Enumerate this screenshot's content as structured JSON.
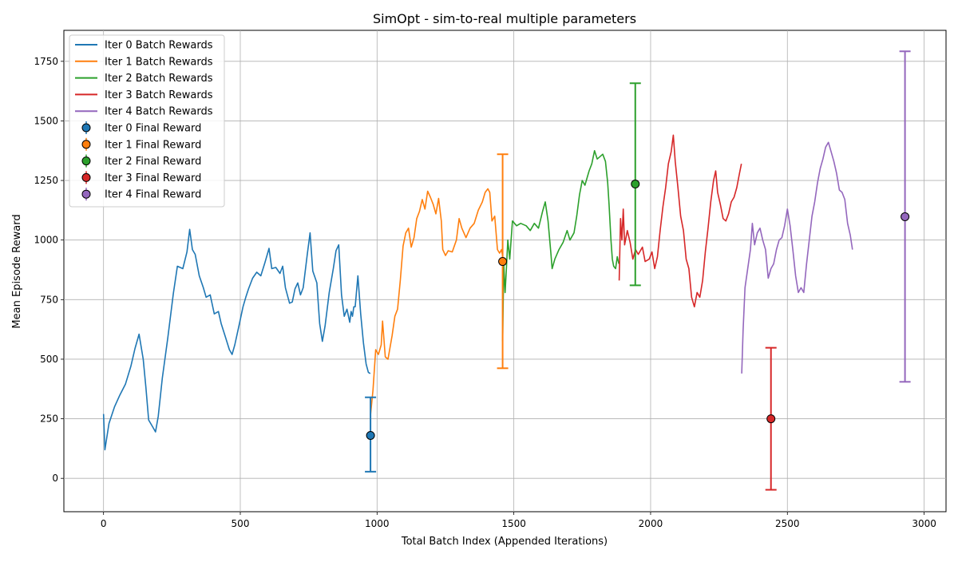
{
  "chart_data": {
    "type": "line",
    "title": "SimOpt - sim-to-real multiple parameters",
    "xlabel": "Total Batch Index (Appended Iterations)",
    "ylabel": "Mean Episode Reward",
    "xlim": [
      -145,
      3080
    ],
    "ylim": [
      -140,
      1880
    ],
    "xticks": [
      0,
      500,
      1000,
      1500,
      2000,
      2500,
      3000
    ],
    "yticks": [
      0,
      250,
      500,
      750,
      1000,
      1250,
      1500,
      1750
    ],
    "grid": true,
    "legend_position": "top-left",
    "series": [
      {
        "name": "Iter 0 Batch Rewards",
        "color": "#1f77b4",
        "points": [
          [
            0,
            270
          ],
          [
            5,
            120
          ],
          [
            20,
            230
          ],
          [
            40,
            300
          ],
          [
            60,
            350
          ],
          [
            80,
            395
          ],
          [
            100,
            470
          ],
          [
            115,
            545
          ],
          [
            130,
            605
          ],
          [
            145,
            500
          ],
          [
            155,
            380
          ],
          [
            165,
            245
          ],
          [
            180,
            215
          ],
          [
            190,
            195
          ],
          [
            200,
            260
          ],
          [
            215,
            420
          ],
          [
            235,
            590
          ],
          [
            255,
            775
          ],
          [
            270,
            890
          ],
          [
            290,
            880
          ],
          [
            305,
            950
          ],
          [
            315,
            1045
          ],
          [
            325,
            960
          ],
          [
            335,
            940
          ],
          [
            350,
            850
          ],
          [
            365,
            800
          ],
          [
            375,
            760
          ],
          [
            390,
            770
          ],
          [
            405,
            690
          ],
          [
            420,
            700
          ],
          [
            430,
            650
          ],
          [
            445,
            595
          ],
          [
            460,
            540
          ],
          [
            470,
            520
          ],
          [
            480,
            560
          ],
          [
            495,
            640
          ],
          [
            510,
            720
          ],
          [
            520,
            760
          ],
          [
            530,
            795
          ],
          [
            545,
            840
          ],
          [
            560,
            865
          ],
          [
            575,
            850
          ],
          [
            590,
            905
          ],
          [
            605,
            965
          ],
          [
            615,
            880
          ],
          [
            630,
            885
          ],
          [
            645,
            860
          ],
          [
            655,
            890
          ],
          [
            665,
            800
          ],
          [
            680,
            735
          ],
          [
            690,
            740
          ],
          [
            700,
            795
          ],
          [
            710,
            820
          ],
          [
            720,
            770
          ],
          [
            730,
            800
          ],
          [
            745,
            940
          ],
          [
            755,
            1030
          ],
          [
            765,
            870
          ],
          [
            780,
            820
          ],
          [
            790,
            650
          ],
          [
            800,
            575
          ],
          [
            810,
            640
          ],
          [
            825,
            780
          ],
          [
            840,
            880
          ],
          [
            850,
            955
          ],
          [
            860,
            980
          ],
          [
            870,
            770
          ],
          [
            880,
            680
          ],
          [
            890,
            710
          ],
          [
            900,
            655
          ],
          [
            905,
            700
          ],
          [
            910,
            680
          ],
          [
            915,
            720
          ],
          [
            920,
            720
          ],
          [
            930,
            850
          ],
          [
            940,
            690
          ],
          [
            950,
            570
          ],
          [
            960,
            480
          ],
          [
            968,
            445
          ],
          [
            975,
            440
          ]
        ]
      },
      {
        "name": "Iter 1 Batch Rewards",
        "color": "#ff7f0e",
        "points": [
          [
            976,
            265
          ],
          [
            985,
            370
          ],
          [
            995,
            540
          ],
          [
            1005,
            520
          ],
          [
            1015,
            560
          ],
          [
            1020,
            660
          ],
          [
            1030,
            510
          ],
          [
            1040,
            500
          ],
          [
            1055,
            600
          ],
          [
            1065,
            680
          ],
          [
            1075,
            710
          ],
          [
            1085,
            830
          ],
          [
            1095,
            975
          ],
          [
            1105,
            1030
          ],
          [
            1115,
            1050
          ],
          [
            1125,
            970
          ],
          [
            1135,
            1010
          ],
          [
            1145,
            1090
          ],
          [
            1155,
            1120
          ],
          [
            1165,
            1170
          ],
          [
            1175,
            1130
          ],
          [
            1185,
            1205
          ],
          [
            1195,
            1180
          ],
          [
            1205,
            1150
          ],
          [
            1215,
            1110
          ],
          [
            1225,
            1175
          ],
          [
            1235,
            1080
          ],
          [
            1240,
            960
          ],
          [
            1250,
            935
          ],
          [
            1260,
            955
          ],
          [
            1275,
            950
          ],
          [
            1290,
            1000
          ],
          [
            1300,
            1090
          ],
          [
            1310,
            1050
          ],
          [
            1325,
            1010
          ],
          [
            1340,
            1050
          ],
          [
            1355,
            1070
          ],
          [
            1370,
            1125
          ],
          [
            1385,
            1160
          ],
          [
            1395,
            1200
          ],
          [
            1405,
            1215
          ],
          [
            1412,
            1200
          ],
          [
            1420,
            1080
          ],
          [
            1430,
            1100
          ],
          [
            1440,
            960
          ],
          [
            1448,
            945
          ],
          [
            1455,
            960
          ],
          [
            1458,
            940
          ]
        ]
      },
      {
        "name": "Iter 2 Batch Rewards",
        "color": "#2ca02c",
        "points": [
          [
            1459,
            575
          ],
          [
            1463,
            900
          ],
          [
            1468,
            780
          ],
          [
            1472,
            860
          ],
          [
            1478,
            1000
          ],
          [
            1485,
            920
          ],
          [
            1495,
            1080
          ],
          [
            1510,
            1060
          ],
          [
            1525,
            1070
          ],
          [
            1545,
            1060
          ],
          [
            1560,
            1040
          ],
          [
            1575,
            1070
          ],
          [
            1590,
            1050
          ],
          [
            1605,
            1120
          ],
          [
            1615,
            1160
          ],
          [
            1625,
            1080
          ],
          [
            1635,
            950
          ],
          [
            1640,
            880
          ],
          [
            1650,
            920
          ],
          [
            1665,
            960
          ],
          [
            1680,
            990
          ],
          [
            1695,
            1040
          ],
          [
            1705,
            1000
          ],
          [
            1720,
            1030
          ],
          [
            1730,
            1100
          ],
          [
            1740,
            1190
          ],
          [
            1750,
            1250
          ],
          [
            1760,
            1230
          ],
          [
            1775,
            1290
          ],
          [
            1785,
            1320
          ],
          [
            1795,
            1375
          ],
          [
            1805,
            1340
          ],
          [
            1815,
            1350
          ],
          [
            1825,
            1360
          ],
          [
            1835,
            1330
          ],
          [
            1843,
            1240
          ],
          [
            1848,
            1150
          ],
          [
            1855,
            1000
          ],
          [
            1860,
            920
          ],
          [
            1865,
            890
          ],
          [
            1872,
            880
          ],
          [
            1878,
            930
          ],
          [
            1884,
            900
          ]
        ]
      },
      {
        "name": "Iter 3 Batch Rewards",
        "color": "#d62728",
        "points": [
          [
            1885,
            830
          ],
          [
            1890,
            1090
          ],
          [
            1895,
            1000
          ],
          [
            1900,
            1130
          ],
          [
            1905,
            980
          ],
          [
            1915,
            1040
          ],
          [
            1925,
            990
          ],
          [
            1935,
            920
          ],
          [
            1945,
            960
          ],
          [
            1955,
            940
          ],
          [
            1970,
            970
          ],
          [
            1980,
            910
          ],
          [
            1995,
            920
          ],
          [
            2005,
            950
          ],
          [
            2015,
            880
          ],
          [
            2025,
            930
          ],
          [
            2035,
            1040
          ],
          [
            2045,
            1140
          ],
          [
            2055,
            1220
          ],
          [
            2065,
            1320
          ],
          [
            2075,
            1370
          ],
          [
            2083,
            1440
          ],
          [
            2090,
            1330
          ],
          [
            2100,
            1220
          ],
          [
            2110,
            1100
          ],
          [
            2120,
            1040
          ],
          [
            2130,
            920
          ],
          [
            2140,
            880
          ],
          [
            2150,
            760
          ],
          [
            2160,
            720
          ],
          [
            2170,
            780
          ],
          [
            2180,
            760
          ],
          [
            2190,
            830
          ],
          [
            2200,
            950
          ],
          [
            2210,
            1050
          ],
          [
            2220,
            1160
          ],
          [
            2230,
            1250
          ],
          [
            2238,
            1290
          ],
          [
            2245,
            1200
          ],
          [
            2255,
            1150
          ],
          [
            2265,
            1090
          ],
          [
            2275,
            1080
          ],
          [
            2285,
            1110
          ],
          [
            2295,
            1160
          ],
          [
            2305,
            1180
          ],
          [
            2315,
            1220
          ],
          [
            2325,
            1280
          ],
          [
            2332,
            1320
          ]
        ]
      },
      {
        "name": "Iter 4 Batch Rewards",
        "color": "#9467bd",
        "points": [
          [
            2333,
            440
          ],
          [
            2338,
            620
          ],
          [
            2345,
            800
          ],
          [
            2355,
            880
          ],
          [
            2365,
            960
          ],
          [
            2372,
            1070
          ],
          [
            2380,
            980
          ],
          [
            2390,
            1030
          ],
          [
            2400,
            1050
          ],
          [
            2410,
            1000
          ],
          [
            2420,
            960
          ],
          [
            2430,
            840
          ],
          [
            2440,
            880
          ],
          [
            2450,
            900
          ],
          [
            2460,
            960
          ],
          [
            2470,
            1000
          ],
          [
            2480,
            1010
          ],
          [
            2490,
            1060
          ],
          [
            2500,
            1130
          ],
          [
            2510,
            1060
          ],
          [
            2520,
            960
          ],
          [
            2530,
            850
          ],
          [
            2540,
            780
          ],
          [
            2550,
            800
          ],
          [
            2560,
            780
          ],
          [
            2570,
            900
          ],
          [
            2580,
            1000
          ],
          [
            2590,
            1100
          ],
          [
            2600,
            1160
          ],
          [
            2610,
            1240
          ],
          [
            2620,
            1300
          ],
          [
            2630,
            1340
          ],
          [
            2640,
            1390
          ],
          [
            2650,
            1410
          ],
          [
            2660,
            1370
          ],
          [
            2670,
            1330
          ],
          [
            2680,
            1280
          ],
          [
            2690,
            1210
          ],
          [
            2700,
            1200
          ],
          [
            2710,
            1170
          ],
          [
            2720,
            1070
          ],
          [
            2730,
            1020
          ],
          [
            2738,
            960
          ]
        ]
      }
    ],
    "final_rewards": [
      {
        "name": "Iter 0 Final Reward",
        "color": "#1f77b4",
        "x": 976,
        "y": 180,
        "lower": 28,
        "upper": 340
      },
      {
        "name": "Iter 1 Final Reward",
        "color": "#ff7f0e",
        "x": 1459,
        "y": 910,
        "lower": 462,
        "upper": 1360
      },
      {
        "name": "Iter 2 Final Reward",
        "color": "#2ca02c",
        "x": 1944,
        "y": 1235,
        "lower": 810,
        "upper": 1658
      },
      {
        "name": "Iter 3 Final Reward",
        "color": "#d62728",
        "x": 2440,
        "y": 250,
        "lower": -48,
        "upper": 548
      },
      {
        "name": "Iter 4 Final Reward",
        "color": "#9467bd",
        "x": 2930,
        "y": 1098,
        "lower": 405,
        "upper": 1792
      }
    ]
  }
}
